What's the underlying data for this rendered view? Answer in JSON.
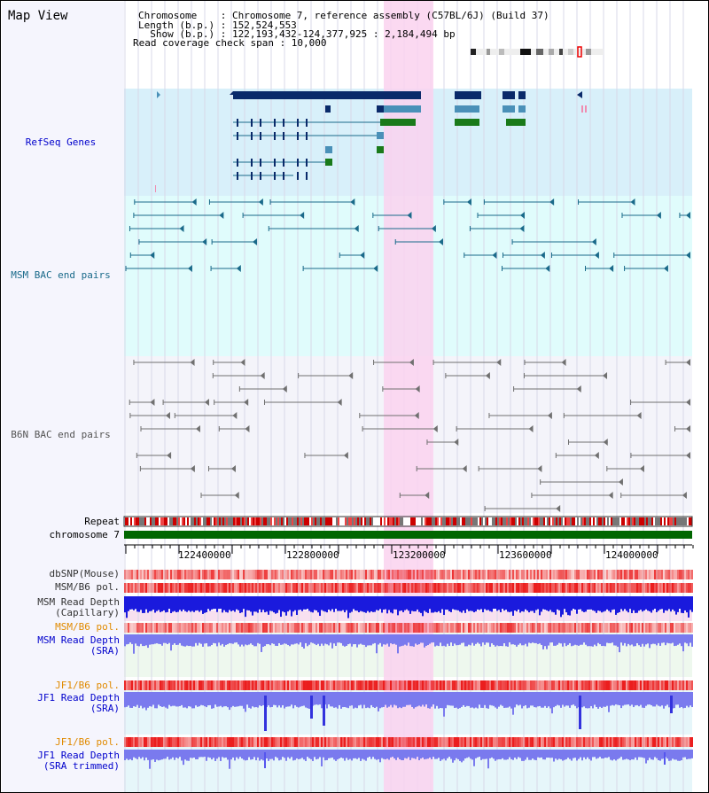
{
  "panel_title": "Map View",
  "info": {
    "chromosome_line": "Chromosome    : Chromosome 7, reference assembly (C57BL/6J) (Build 37)",
    "length_line": "Length (b.p.) : 152,524,553",
    "show_line": "  Show (b.p.) : 122,193,432-124,377,925 : 2,184,494 bp",
    "coverage_line": "Read coverage check span : 10,000"
  },
  "tracks": {
    "refseq": "RefSeq Genes",
    "msm_bac": "MSM BAC end pairs",
    "b6n_bac": "B6N BAC end pairs",
    "repeat": "Repeat",
    "chromosome": "chromosome 7",
    "dbsnp": "dbSNP(Mouse)",
    "msm_pol1": "MSM/B6 pol.",
    "msm_depth_cap": "MSM Read Depth\n(Capillary)",
    "msm_pol2": "MSM/B6 pol.",
    "msm_depth_sra": "MSM Read Depth\n(SRA)",
    "jf1_pol1": "JF1/B6 pol.",
    "jf1_depth_sra": "JF1 Read Depth\n(SRA)",
    "jf1_pol2": "JF1/B6 pol.",
    "jf1_depth_trim": "JF1 Read Depth\n(SRA trimmed)"
  },
  "axis_ticks": [
    "122400000",
    "122800000",
    "123200000",
    "123600000",
    "124000000"
  ],
  "colors": {
    "refseq_bg": "#d8f0fa",
    "msm_bg": "#e0fcfc",
    "b6n_bg": "#f4f4fa",
    "highlight": "#fad2ee",
    "gene_dark": "#0a2a6a",
    "gene_mid": "#4a90b8",
    "gene_green": "#1a7a1a",
    "bac_teal": "#1a6a8a",
    "bac_gray": "#707070",
    "depth_blue": "#1a1add",
    "depth_light": "#7a7aee",
    "chrom_green": "#006600"
  }
}
